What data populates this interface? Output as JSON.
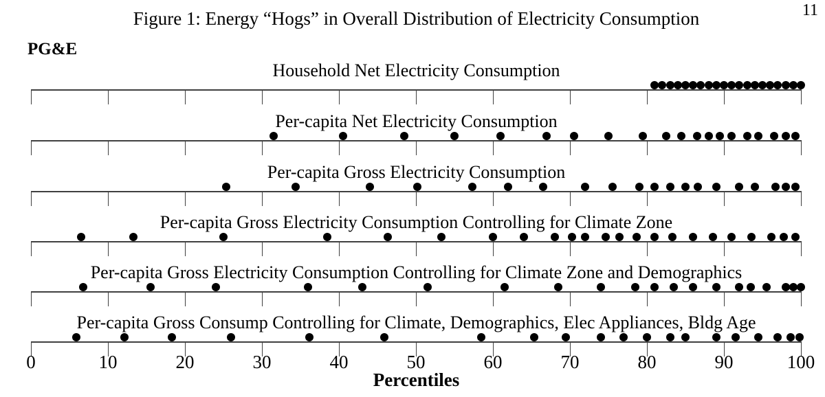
{
  "page": {
    "number": "11"
  },
  "figure": {
    "title": "Figure 1: Energy “Hogs” in Overall Distribution of Electricity Consumption",
    "utility": "PG&E"
  },
  "chart_data": {
    "type": "scatter",
    "subtype": "strip-dot-plot",
    "title": "Figure 1: Energy “Hogs” in Overall Distribution of Electricity Consumption",
    "group_label": "PG&E",
    "xlabel": "Percentiles",
    "xlim": [
      0,
      100
    ],
    "x_ticks": [
      0,
      10,
      20,
      30,
      40,
      50,
      60,
      70,
      80,
      90,
      100
    ],
    "grid": false,
    "legend": false,
    "dot_color": "#000000",
    "axis_color": "#3f3f3f",
    "strips": [
      {
        "title": "Household Net Electricity Consumption",
        "percentiles": [
          81,
          82,
          83,
          84,
          85,
          86,
          87,
          88,
          89,
          90,
          91,
          92,
          93,
          94,
          95,
          96,
          97,
          98,
          99,
          100
        ]
      },
      {
        "title": "Per-capita Net Electricity Consumption",
        "percentiles": [
          31.5,
          40.5,
          48.5,
          55,
          61,
          67,
          70.5,
          75,
          79.5,
          82.5,
          84.5,
          86.5,
          88,
          89.5,
          91,
          93,
          94.5,
          96.5,
          98,
          99.3
        ]
      },
      {
        "title": "Per-capita Gross Electricity Consumption",
        "percentiles": [
          25.4,
          34.4,
          44,
          50.2,
          57.3,
          62,
          66.5,
          72,
          75.5,
          79,
          81,
          83,
          85,
          86.6,
          89,
          92,
          94,
          96.7,
          98,
          99.3
        ]
      },
      {
        "title": "Per-capita Gross Electricity Consumption Controlling for Climate Zone",
        "percentiles": [
          6.5,
          13.3,
          25,
          38.5,
          46.3,
          53.3,
          60,
          64,
          68,
          70.3,
          72,
          74.6,
          76.4,
          78.7,
          81,
          83.3,
          86,
          88.6,
          91,
          93.6,
          96.2,
          97.8,
          99.3
        ]
      },
      {
        "title": "Per-capita Gross Electricity Consumption Controlling for Climate Zone and Demographics",
        "percentiles": [
          6.8,
          15.5,
          24,
          36,
          43,
          51.5,
          61.5,
          68.5,
          74,
          78.5,
          81,
          83.5,
          86,
          89,
          92,
          93.5,
          95.5,
          98,
          99,
          100
        ]
      },
      {
        "title": "Per-capita Gross Consump Controlling for Climate, Demographics, Elec Appliances, Bldg Age",
        "percentiles": [
          5.9,
          12.1,
          18.3,
          26,
          36.2,
          45.9,
          58.5,
          65.4,
          69.5,
          74,
          77,
          80,
          83,
          85,
          89,
          91.5,
          94.5,
          97,
          98.7,
          99.8
        ]
      }
    ]
  }
}
